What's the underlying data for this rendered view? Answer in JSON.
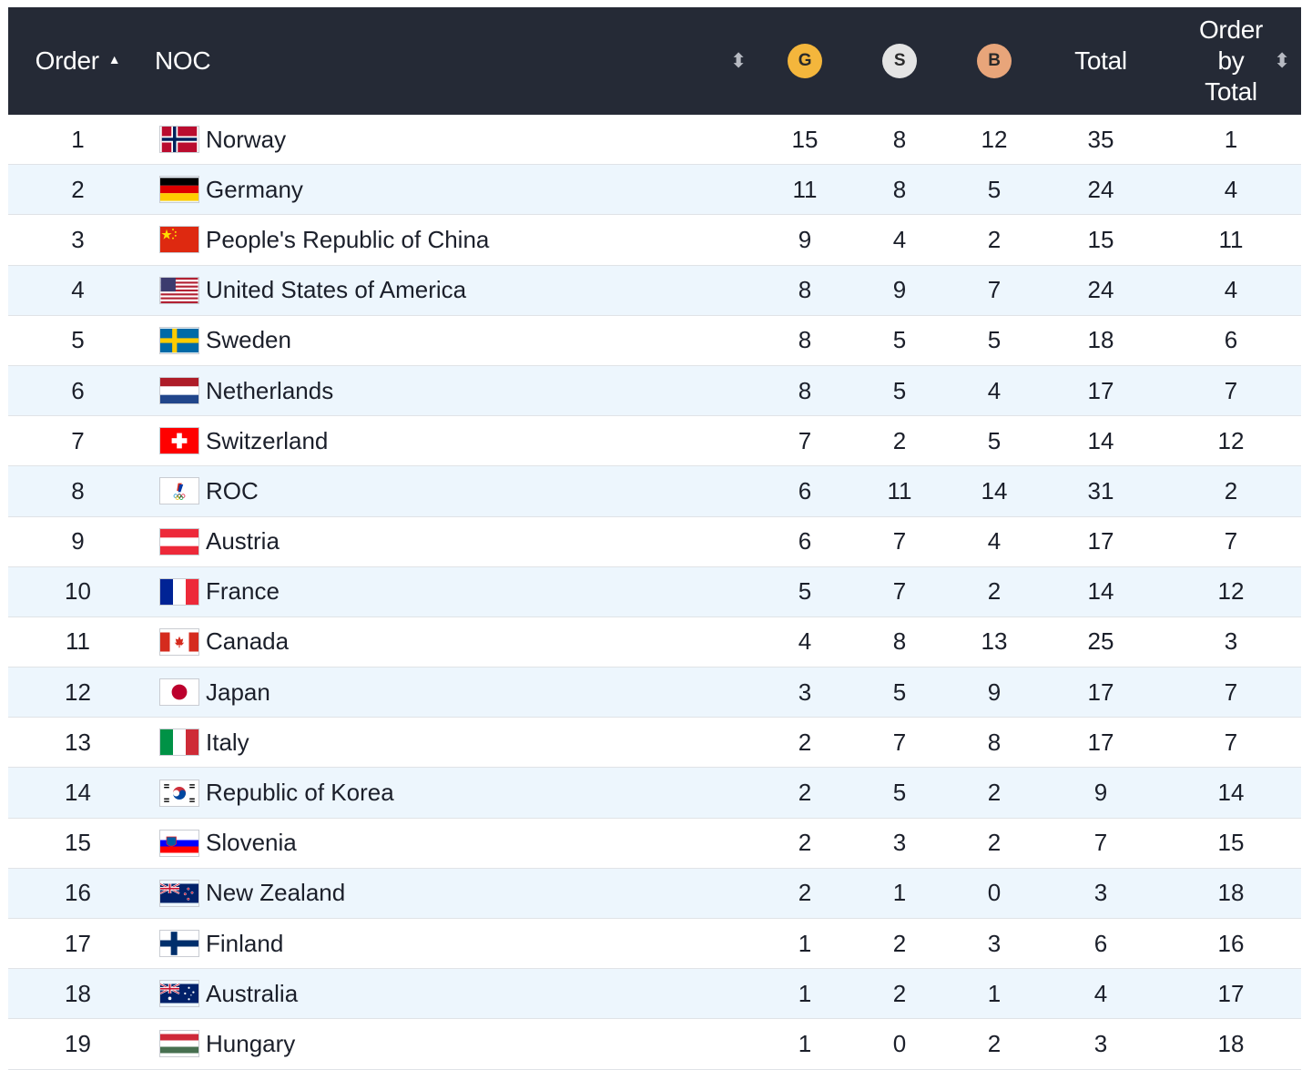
{
  "header": {
    "order_label": "Order",
    "sort_caret": "▲",
    "noc_label": "NOC",
    "noc_sort_icon": "⬍",
    "gold_label": "G",
    "silver_label": "S",
    "bronze_label": "B",
    "total_label": "Total",
    "order_by_total_lines": [
      "Order",
      "by",
      "Total"
    ],
    "order_by_total_sort_icon": "⬍"
  },
  "colors": {
    "header_bg": "#252a36",
    "gold": "#f4b63c",
    "silver": "#e4e4e4",
    "bronze": "#e8a57a",
    "alt_row": "#edf6fd"
  },
  "rows": [
    {
      "order": "1",
      "noc": "Norway",
      "flag": "norway",
      "gold": "15",
      "silver": "8",
      "bronze": "12",
      "total": "35",
      "order_by_total": "1"
    },
    {
      "order": "2",
      "noc": "Germany",
      "flag": "germany",
      "gold": "11",
      "silver": "8",
      "bronze": "5",
      "total": "24",
      "order_by_total": "4"
    },
    {
      "order": "3",
      "noc": "People's Republic of China",
      "flag": "china",
      "gold": "9",
      "silver": "4",
      "bronze": "2",
      "total": "15",
      "order_by_total": "11"
    },
    {
      "order": "4",
      "noc": "United States of America",
      "flag": "usa",
      "gold": "8",
      "silver": "9",
      "bronze": "7",
      "total": "24",
      "order_by_total": "4"
    },
    {
      "order": "5",
      "noc": "Sweden",
      "flag": "sweden",
      "gold": "8",
      "silver": "5",
      "bronze": "5",
      "total": "18",
      "order_by_total": "6"
    },
    {
      "order": "6",
      "noc": "Netherlands",
      "flag": "netherlands",
      "gold": "8",
      "silver": "5",
      "bronze": "4",
      "total": "17",
      "order_by_total": "7"
    },
    {
      "order": "7",
      "noc": "Switzerland",
      "flag": "switzerland",
      "gold": "7",
      "silver": "2",
      "bronze": "5",
      "total": "14",
      "order_by_total": "12"
    },
    {
      "order": "8",
      "noc": "ROC",
      "flag": "roc",
      "gold": "6",
      "silver": "11",
      "bronze": "14",
      "total": "31",
      "order_by_total": "2"
    },
    {
      "order": "9",
      "noc": "Austria",
      "flag": "austria",
      "gold": "6",
      "silver": "7",
      "bronze": "4",
      "total": "17",
      "order_by_total": "7"
    },
    {
      "order": "10",
      "noc": "France",
      "flag": "france",
      "gold": "5",
      "silver": "7",
      "bronze": "2",
      "total": "14",
      "order_by_total": "12"
    },
    {
      "order": "11",
      "noc": "Canada",
      "flag": "canada",
      "gold": "4",
      "silver": "8",
      "bronze": "13",
      "total": "25",
      "order_by_total": "3"
    },
    {
      "order": "12",
      "noc": "Japan",
      "flag": "japan",
      "gold": "3",
      "silver": "5",
      "bronze": "9",
      "total": "17",
      "order_by_total": "7"
    },
    {
      "order": "13",
      "noc": "Italy",
      "flag": "italy",
      "gold": "2",
      "silver": "7",
      "bronze": "8",
      "total": "17",
      "order_by_total": "7"
    },
    {
      "order": "14",
      "noc": "Republic of Korea",
      "flag": "korea",
      "gold": "2",
      "silver": "5",
      "bronze": "2",
      "total": "9",
      "order_by_total": "14"
    },
    {
      "order": "15",
      "noc": "Slovenia",
      "flag": "slovenia",
      "gold": "2",
      "silver": "3",
      "bronze": "2",
      "total": "7",
      "order_by_total": "15"
    },
    {
      "order": "16",
      "noc": "New Zealand",
      "flag": "new-zealand",
      "gold": "2",
      "silver": "1",
      "bronze": "0",
      "total": "3",
      "order_by_total": "18"
    },
    {
      "order": "17",
      "noc": "Finland",
      "flag": "finland",
      "gold": "1",
      "silver": "2",
      "bronze": "3",
      "total": "6",
      "order_by_total": "16"
    },
    {
      "order": "18",
      "noc": "Australia",
      "flag": "australia",
      "gold": "1",
      "silver": "2",
      "bronze": "1",
      "total": "4",
      "order_by_total": "17"
    },
    {
      "order": "19",
      "noc": "Hungary",
      "flag": "hungary",
      "gold": "1",
      "silver": "0",
      "bronze": "2",
      "total": "3",
      "order_by_total": "18"
    }
  ]
}
